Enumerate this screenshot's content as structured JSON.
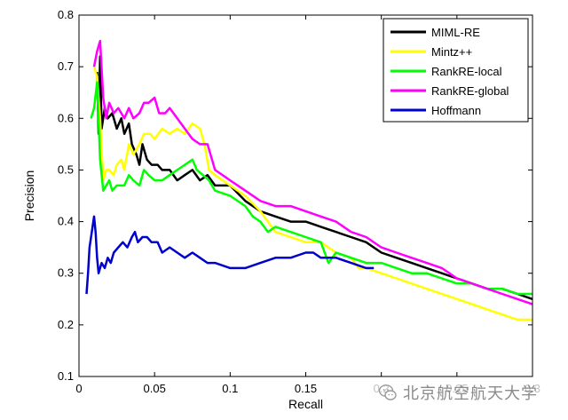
{
  "chart_data": {
    "type": "line",
    "xlabel": "Recall",
    "ylabel": "Precision",
    "xlim": [
      0,
      0.3
    ],
    "ylim": [
      0.1,
      0.8
    ],
    "xticks": [
      "0",
      "0.05",
      "0.1",
      "0.15",
      "0.2",
      "0.25",
      "0.3"
    ],
    "yticks": [
      "0.1",
      "0.2",
      "0.3",
      "0.4",
      "0.5",
      "0.6",
      "0.7",
      "0.8"
    ],
    "legend_position": "top-right",
    "grid": false,
    "series": [
      {
        "name": "MIML-RE",
        "color": "#000000",
        "points": [
          [
            0.012,
            0.69
          ],
          [
            0.013,
            0.57
          ],
          [
            0.014,
            0.72
          ],
          [
            0.015,
            0.58
          ],
          [
            0.017,
            0.62
          ],
          [
            0.019,
            0.6
          ],
          [
            0.022,
            0.61
          ],
          [
            0.025,
            0.58
          ],
          [
            0.028,
            0.6
          ],
          [
            0.03,
            0.57
          ],
          [
            0.033,
            0.59
          ],
          [
            0.035,
            0.55
          ],
          [
            0.038,
            0.53
          ],
          [
            0.04,
            0.51
          ],
          [
            0.042,
            0.55
          ],
          [
            0.045,
            0.52
          ],
          [
            0.048,
            0.51
          ],
          [
            0.052,
            0.51
          ],
          [
            0.055,
            0.5
          ],
          [
            0.06,
            0.5
          ],
          [
            0.065,
            0.48
          ],
          [
            0.07,
            0.49
          ],
          [
            0.075,
            0.5
          ],
          [
            0.08,
            0.48
          ],
          [
            0.085,
            0.49
          ],
          [
            0.09,
            0.47
          ],
          [
            0.1,
            0.47
          ],
          [
            0.11,
            0.44
          ],
          [
            0.12,
            0.42
          ],
          [
            0.13,
            0.41
          ],
          [
            0.14,
            0.4
          ],
          [
            0.15,
            0.4
          ],
          [
            0.16,
            0.39
          ],
          [
            0.17,
            0.38
          ],
          [
            0.18,
            0.37
          ],
          [
            0.19,
            0.36
          ],
          [
            0.2,
            0.34
          ],
          [
            0.21,
            0.33
          ],
          [
            0.22,
            0.32
          ],
          [
            0.23,
            0.31
          ],
          [
            0.24,
            0.3
          ],
          [
            0.25,
            0.29
          ],
          [
            0.26,
            0.28
          ],
          [
            0.27,
            0.27
          ],
          [
            0.28,
            0.27
          ],
          [
            0.29,
            0.26
          ],
          [
            0.3,
            0.25
          ]
        ]
      },
      {
        "name": "Mintz++",
        "color": "#ffff00",
        "points": [
          [
            0.01,
            0.7
          ],
          [
            0.012,
            0.68
          ],
          [
            0.014,
            0.6
          ],
          [
            0.016,
            0.48
          ],
          [
            0.018,
            0.5
          ],
          [
            0.02,
            0.5
          ],
          [
            0.023,
            0.49
          ],
          [
            0.025,
            0.51
          ],
          [
            0.028,
            0.52
          ],
          [
            0.03,
            0.5
          ],
          [
            0.033,
            0.55
          ],
          [
            0.036,
            0.53
          ],
          [
            0.04,
            0.55
          ],
          [
            0.043,
            0.57
          ],
          [
            0.047,
            0.57
          ],
          [
            0.05,
            0.56
          ],
          [
            0.055,
            0.58
          ],
          [
            0.06,
            0.57
          ],
          [
            0.065,
            0.58
          ],
          [
            0.07,
            0.57
          ],
          [
            0.075,
            0.59
          ],
          [
            0.08,
            0.58
          ],
          [
            0.083,
            0.55
          ],
          [
            0.086,
            0.5
          ],
          [
            0.09,
            0.49
          ],
          [
            0.1,
            0.47
          ],
          [
            0.11,
            0.45
          ],
          [
            0.12,
            0.42
          ],
          [
            0.125,
            0.4
          ],
          [
            0.13,
            0.38
          ],
          [
            0.14,
            0.37
          ],
          [
            0.15,
            0.36
          ],
          [
            0.16,
            0.36
          ],
          [
            0.17,
            0.34
          ],
          [
            0.18,
            0.33
          ],
          [
            0.185,
            0.31
          ],
          [
            0.19,
            0.31
          ],
          [
            0.2,
            0.3
          ],
          [
            0.21,
            0.29
          ],
          [
            0.22,
            0.28
          ],
          [
            0.23,
            0.27
          ],
          [
            0.24,
            0.26
          ],
          [
            0.25,
            0.25
          ],
          [
            0.26,
            0.24
          ],
          [
            0.27,
            0.23
          ],
          [
            0.28,
            0.22
          ],
          [
            0.29,
            0.21
          ],
          [
            0.3,
            0.21
          ]
        ]
      },
      {
        "name": "RankRE-local",
        "color": "#00ff00",
        "points": [
          [
            0.008,
            0.6
          ],
          [
            0.01,
            0.62
          ],
          [
            0.012,
            0.67
          ],
          [
            0.014,
            0.52
          ],
          [
            0.016,
            0.46
          ],
          [
            0.018,
            0.47
          ],
          [
            0.02,
            0.48
          ],
          [
            0.022,
            0.46
          ],
          [
            0.025,
            0.47
          ],
          [
            0.03,
            0.47
          ],
          [
            0.033,
            0.49
          ],
          [
            0.036,
            0.48
          ],
          [
            0.04,
            0.47
          ],
          [
            0.043,
            0.5
          ],
          [
            0.046,
            0.49
          ],
          [
            0.05,
            0.48
          ],
          [
            0.055,
            0.48
          ],
          [
            0.06,
            0.49
          ],
          [
            0.065,
            0.5
          ],
          [
            0.07,
            0.51
          ],
          [
            0.075,
            0.52
          ],
          [
            0.078,
            0.5
          ],
          [
            0.082,
            0.49
          ],
          [
            0.086,
            0.48
          ],
          [
            0.09,
            0.46
          ],
          [
            0.1,
            0.45
          ],
          [
            0.11,
            0.43
          ],
          [
            0.1,
            0.45
          ],
          [
            0.11,
            0.43
          ],
          [
            0.115,
            0.41
          ],
          [
            0.12,
            0.4
          ],
          [
            0.125,
            0.38
          ],
          [
            0.13,
            0.39
          ],
          [
            0.14,
            0.38
          ],
          [
            0.15,
            0.37
          ],
          [
            0.16,
            0.36
          ],
          [
            0.165,
            0.32
          ],
          [
            0.17,
            0.34
          ],
          [
            0.18,
            0.33
          ],
          [
            0.19,
            0.32
          ],
          [
            0.2,
            0.32
          ],
          [
            0.21,
            0.31
          ],
          [
            0.22,
            0.3
          ],
          [
            0.23,
            0.3
          ],
          [
            0.24,
            0.29
          ],
          [
            0.25,
            0.28
          ],
          [
            0.26,
            0.28
          ],
          [
            0.27,
            0.27
          ],
          [
            0.28,
            0.27
          ],
          [
            0.29,
            0.26
          ],
          [
            0.3,
            0.26
          ]
        ]
      },
      {
        "name": "RankRE-global",
        "color": "#ff00ff",
        "points": [
          [
            0.01,
            0.7
          ],
          [
            0.012,
            0.73
          ],
          [
            0.014,
            0.75
          ],
          [
            0.016,
            0.64
          ],
          [
            0.018,
            0.6
          ],
          [
            0.02,
            0.63
          ],
          [
            0.023,
            0.61
          ],
          [
            0.026,
            0.62
          ],
          [
            0.03,
            0.6
          ],
          [
            0.033,
            0.62
          ],
          [
            0.036,
            0.6
          ],
          [
            0.04,
            0.61
          ],
          [
            0.043,
            0.63
          ],
          [
            0.046,
            0.63
          ],
          [
            0.05,
            0.64
          ],
          [
            0.053,
            0.61
          ],
          [
            0.057,
            0.61
          ],
          [
            0.06,
            0.62
          ],
          [
            0.065,
            0.6
          ],
          [
            0.07,
            0.58
          ],
          [
            0.075,
            0.56
          ],
          [
            0.08,
            0.55
          ],
          [
            0.085,
            0.55
          ],
          [
            0.09,
            0.5
          ],
          [
            0.1,
            0.48
          ],
          [
            0.11,
            0.46
          ],
          [
            0.12,
            0.44
          ],
          [
            0.13,
            0.43
          ],
          [
            0.14,
            0.43
          ],
          [
            0.15,
            0.42
          ],
          [
            0.16,
            0.41
          ],
          [
            0.17,
            0.4
          ],
          [
            0.18,
            0.38
          ],
          [
            0.19,
            0.37
          ],
          [
            0.2,
            0.35
          ],
          [
            0.21,
            0.34
          ],
          [
            0.22,
            0.33
          ],
          [
            0.23,
            0.32
          ],
          [
            0.24,
            0.31
          ],
          [
            0.25,
            0.29
          ],
          [
            0.26,
            0.28
          ],
          [
            0.27,
            0.27
          ],
          [
            0.28,
            0.26
          ],
          [
            0.29,
            0.25
          ],
          [
            0.3,
            0.24
          ]
        ]
      },
      {
        "name": "Hoffmann",
        "color": "#0000cc",
        "points": [
          [
            0.005,
            0.26
          ],
          [
            0.006,
            0.3
          ],
          [
            0.007,
            0.35
          ],
          [
            0.008,
            0.37
          ],
          [
            0.009,
            0.39
          ],
          [
            0.01,
            0.41
          ],
          [
            0.011,
            0.38
          ],
          [
            0.012,
            0.33
          ],
          [
            0.013,
            0.3
          ],
          [
            0.015,
            0.32
          ],
          [
            0.017,
            0.31
          ],
          [
            0.019,
            0.33
          ],
          [
            0.021,
            0.32
          ],
          [
            0.023,
            0.34
          ],
          [
            0.026,
            0.35
          ],
          [
            0.029,
            0.36
          ],
          [
            0.032,
            0.35
          ],
          [
            0.035,
            0.37
          ],
          [
            0.037,
            0.38
          ],
          [
            0.039,
            0.36
          ],
          [
            0.042,
            0.37
          ],
          [
            0.045,
            0.37
          ],
          [
            0.048,
            0.36
          ],
          [
            0.052,
            0.36
          ],
          [
            0.055,
            0.34
          ],
          [
            0.06,
            0.35
          ],
          [
            0.065,
            0.34
          ],
          [
            0.07,
            0.33
          ],
          [
            0.075,
            0.34
          ],
          [
            0.08,
            0.33
          ],
          [
            0.085,
            0.32
          ],
          [
            0.09,
            0.32
          ],
          [
            0.1,
            0.31
          ],
          [
            0.11,
            0.31
          ],
          [
            0.12,
            0.32
          ],
          [
            0.13,
            0.33
          ],
          [
            0.14,
            0.33
          ],
          [
            0.15,
            0.34
          ],
          [
            0.155,
            0.34
          ],
          [
            0.16,
            0.33
          ],
          [
            0.17,
            0.33
          ],
          [
            0.18,
            0.32
          ],
          [
            0.19,
            0.31
          ],
          [
            0.195,
            0.31
          ]
        ]
      }
    ]
  },
  "watermark": {
    "icon": "wechat-icon",
    "text": "北京航空航天大学"
  }
}
